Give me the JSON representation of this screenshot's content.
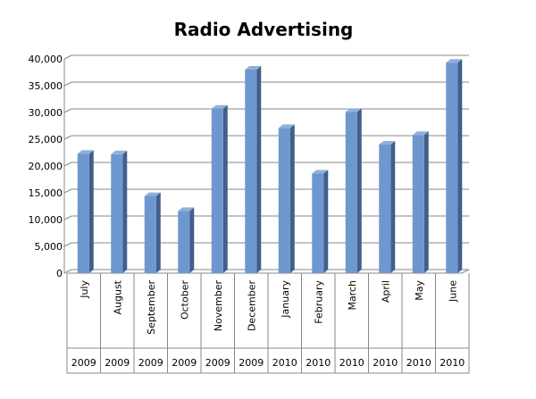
{
  "chart_data": {
    "type": "bar",
    "title": "Radio Advertising",
    "categories": [
      "July",
      "August",
      "September",
      "October",
      "November",
      "December",
      "January",
      "February",
      "March",
      "April",
      "May",
      "June"
    ],
    "category_groups": [
      "2009",
      "2009",
      "2009",
      "2009",
      "2009",
      "2009",
      "2010",
      "2010",
      "2010",
      "2010",
      "2010",
      "2010"
    ],
    "values": [
      22300,
      22200,
      14400,
      11600,
      30700,
      38000,
      27100,
      18600,
      30100,
      24000,
      25800,
      39300
    ],
    "color": "#6f97cf",
    "ylim": [
      0,
      40000
    ],
    "yticks": [
      0,
      {
        "value": 5000,
        "label": "5,000"
      },
      {
        "value": 10000,
        "label": "10,000"
      },
      {
        "value": 15000,
        "label": "15,000"
      },
      {
        "value": 20000,
        "label": "20,000"
      },
      {
        "value": 25000,
        "label": "25,000"
      },
      {
        "value": 30000,
        "label": "30,000"
      },
      {
        "value": 35000,
        "label": "35,000"
      },
      {
        "value": 40000,
        "label": "40,000"
      }
    ],
    "grid": true
  }
}
